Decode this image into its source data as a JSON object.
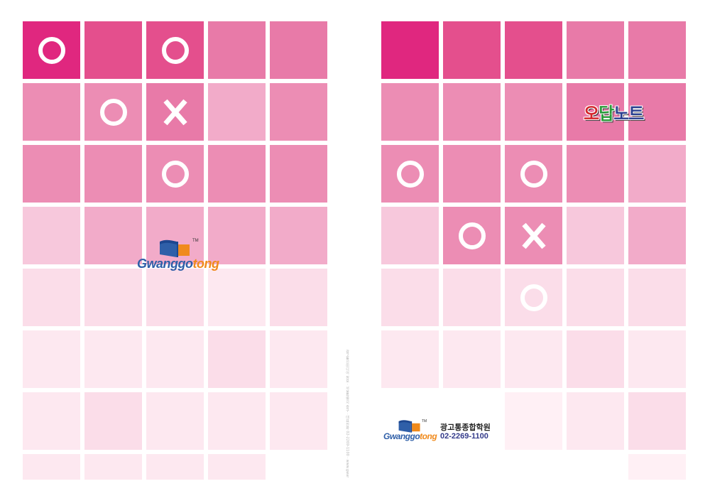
{
  "colors": {
    "magenta": "#e0277f",
    "pink_dark": "#e44f8d",
    "pink_mid": "#e87aa8",
    "pink_soft": "#ec8db4",
    "pink_light": "#f2abc9",
    "pink_pale": "#f7c8dc",
    "pink_faint": "#fbdde9",
    "pink_fainter": "#fde8f0",
    "pink_whisper": "#fff0f5",
    "mark": "#ffffff",
    "logo_blue": "#2f5fa8",
    "logo_orange": "#f08a1c"
  },
  "back_cover": {
    "logo": {
      "text_a": "Gwanggo",
      "text_b": "tong",
      "tm": "TM"
    },
    "tiles": [
      [
        "magenta",
        "O"
      ],
      [
        "pink_dark",
        ""
      ],
      [
        "pink_dark",
        "O"
      ],
      [
        "pink_mid",
        ""
      ],
      [
        "pink_mid",
        ""
      ],
      [
        "pink_soft",
        ""
      ],
      [
        "pink_soft",
        "O"
      ],
      [
        "pink_mid",
        "X"
      ],
      [
        "pink_light",
        ""
      ],
      [
        "pink_soft",
        ""
      ],
      [
        "pink_soft",
        ""
      ],
      [
        "pink_soft",
        ""
      ],
      [
        "pink_soft",
        "O"
      ],
      [
        "pink_soft",
        ""
      ],
      [
        "pink_soft",
        ""
      ],
      [
        "pink_pale",
        ""
      ],
      [
        "pink_light",
        ""
      ],
      [
        "pink_light",
        ""
      ],
      [
        "pink_light",
        ""
      ],
      [
        "pink_light",
        ""
      ],
      [
        "pink_faint",
        ""
      ],
      [
        "pink_faint",
        ""
      ],
      [
        "pink_faint",
        ""
      ],
      [
        "pink_fainter",
        ""
      ],
      [
        "pink_faint",
        ""
      ],
      [
        "pink_fainter",
        ""
      ],
      [
        "pink_fainter",
        ""
      ],
      [
        "pink_fainter",
        ""
      ],
      [
        "pink_faint",
        ""
      ],
      [
        "pink_fainter",
        ""
      ],
      [
        "pink_fainter",
        ""
      ],
      [
        "pink_faint",
        ""
      ],
      [
        "pink_fainter",
        ""
      ],
      [
        "pink_fainter",
        ""
      ],
      [
        "pink_fainter",
        ""
      ],
      [
        "pink_fainter",
        ""
      ],
      [
        "pink_fainter",
        ""
      ],
      [
        "pink_fainter",
        ""
      ],
      [
        "pink_fainter",
        ""
      ],
      [
        "",
        ""
      ]
    ]
  },
  "spine": {
    "text": "광고통신미디어 정보 · 서울특별시 중구 · 대표전화 02-2269-1100 · www.gwanggotong.com"
  },
  "front_cover": {
    "title": {
      "o": "오",
      "dap": "답",
      "note": "노트"
    },
    "logo": {
      "text_a": "Gwanggo",
      "text_b": "tong",
      "tm": "TM"
    },
    "school_name": "광고통종합학원",
    "phone": "02-2269-1100",
    "tiles": [
      [
        "magenta",
        ""
      ],
      [
        "pink_dark",
        ""
      ],
      [
        "pink_dark",
        ""
      ],
      [
        "pink_mid",
        ""
      ],
      [
        "pink_mid",
        ""
      ],
      [
        "pink_soft",
        ""
      ],
      [
        "pink_soft",
        ""
      ],
      [
        "pink_soft",
        ""
      ],
      [
        "pink_mid",
        ""
      ],
      [
        "pink_mid",
        ""
      ],
      [
        "pink_soft",
        "O"
      ],
      [
        "pink_soft",
        ""
      ],
      [
        "pink_soft",
        "O"
      ],
      [
        "pink_soft",
        ""
      ],
      [
        "pink_light",
        ""
      ],
      [
        "pink_pale",
        ""
      ],
      [
        "pink_soft",
        "O"
      ],
      [
        "pink_soft",
        "X"
      ],
      [
        "pink_pale",
        ""
      ],
      [
        "pink_light",
        ""
      ],
      [
        "pink_faint",
        ""
      ],
      [
        "pink_faint",
        ""
      ],
      [
        "pink_faint",
        "O"
      ],
      [
        "pink_faint",
        ""
      ],
      [
        "pink_faint",
        ""
      ],
      [
        "pink_fainter",
        ""
      ],
      [
        "pink_fainter",
        ""
      ],
      [
        "pink_fainter",
        ""
      ],
      [
        "pink_faint",
        ""
      ],
      [
        "pink_fainter",
        ""
      ],
      [
        "",
        ""
      ],
      [
        "",
        ""
      ],
      [
        "pink_whisper",
        ""
      ],
      [
        "pink_fainter",
        ""
      ],
      [
        "pink_faint",
        ""
      ],
      [
        "",
        ""
      ],
      [
        "",
        ""
      ],
      [
        "",
        ""
      ],
      [
        "",
        ""
      ],
      [
        "pink_whisper",
        ""
      ]
    ]
  }
}
